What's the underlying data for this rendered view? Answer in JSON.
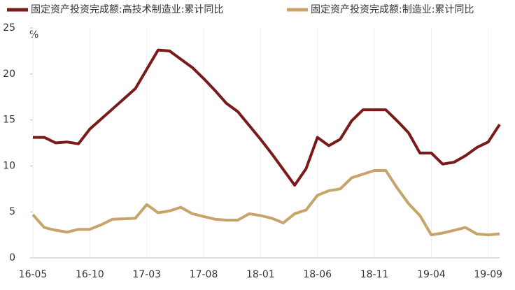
{
  "chart_data": {
    "type": "line",
    "categories": [
      "16-05",
      null,
      null,
      null,
      null,
      "16-10",
      null,
      null,
      null,
      null,
      "17-03",
      null,
      null,
      null,
      null,
      "17-08",
      null,
      null,
      null,
      null,
      "18-01",
      null,
      null,
      null,
      null,
      "18-06",
      null,
      null,
      null,
      null,
      "18-11",
      null,
      null,
      null,
      null,
      "19-04",
      null,
      null,
      null,
      null,
      "19-09",
      null
    ],
    "series": [
      {
        "name": "固定资产投资完成额:高技术制造业:累计同比",
        "color": "#7b1a1a",
        "values": [
          13.1,
          13.1,
          12.5,
          12.6,
          12.4,
          14.0,
          15.1,
          16.2,
          17.3,
          18.4,
          20.5,
          22.6,
          22.5,
          21.6,
          20.7,
          19.5,
          18.2,
          16.8,
          15.9,
          14.4,
          12.9,
          11.3,
          9.6,
          7.9,
          9.7,
          13.1,
          12.2,
          12.9,
          14.9,
          16.1,
          16.1,
          16.1,
          14.9,
          13.6,
          11.4,
          11.4,
          10.2,
          10.4,
          11.1,
          12.0,
          12.6,
          14.5
        ]
      },
      {
        "name": "固定资产投资完成额:制造业:累计同比",
        "color": "#c8a46a",
        "values": [
          4.7,
          3.3,
          3.0,
          2.8,
          3.1,
          3.1,
          3.6,
          4.2,
          4.25,
          4.3,
          5.8,
          4.9,
          5.1,
          5.5,
          4.8,
          4.5,
          4.2,
          4.1,
          4.1,
          4.8,
          4.6,
          4.3,
          3.8,
          4.8,
          5.2,
          6.8,
          7.3,
          7.5,
          8.7,
          9.1,
          9.5,
          9.5,
          7.6,
          5.9,
          4.6,
          2.5,
          2.7,
          3.0,
          3.3,
          2.6,
          2.5,
          2.6
        ]
      }
    ],
    "unit": "%",
    "ylim": [
      0,
      25
    ],
    "yticks": [
      0,
      5,
      10,
      15,
      20,
      25
    ]
  }
}
